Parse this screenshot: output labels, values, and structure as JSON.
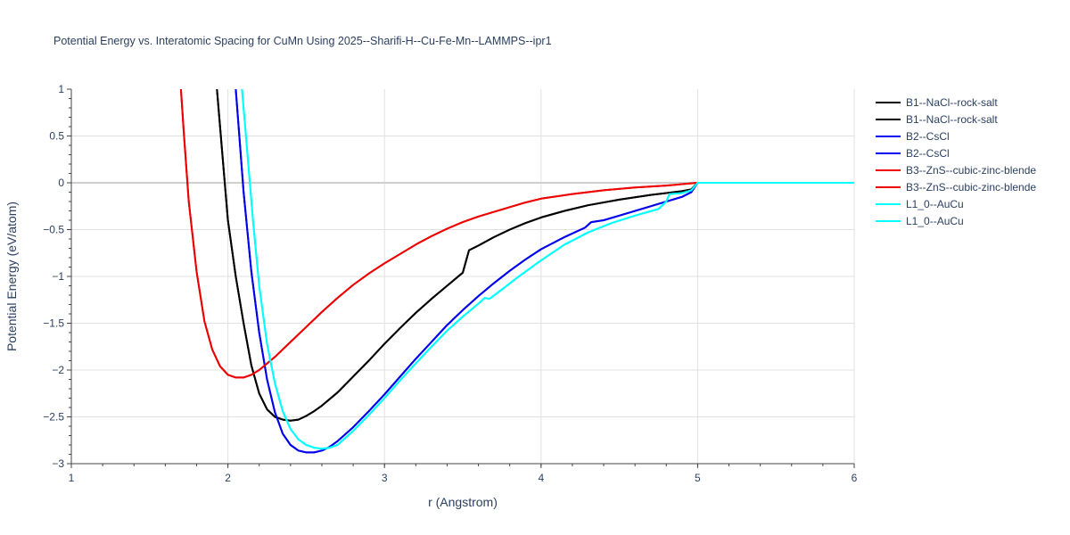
{
  "chart_data": {
    "type": "line",
    "title": "Potential Energy vs. Interatomic Spacing for CuMn Using 2025--Sharifi-H--Cu-Fe-Mn--LAMMPS--ipr1",
    "xlabel": "r (Angstrom)",
    "ylabel": "Potential Energy (eV/atom)",
    "xlim": [
      1,
      6
    ],
    "ylim": [
      -3,
      1
    ],
    "x_ticks": [
      "1",
      "2",
      "3",
      "4",
      "5",
      "6"
    ],
    "y_ticks": [
      "1",
      "0.5",
      "0",
      "−0.5",
      "−1",
      "−1.5",
      "−2",
      "−2.5",
      "−3"
    ],
    "grid": true,
    "legend_position": "right",
    "series": [
      {
        "name": "B1--NaCl--rock-salt",
        "color": "#000000",
        "x": [
          1.93,
          1.97,
          2.0,
          2.05,
          2.1,
          2.15,
          2.2,
          2.25,
          2.3,
          2.35,
          2.4,
          2.45,
          2.5,
          2.55,
          2.6,
          2.7,
          2.8,
          2.9,
          3.0,
          3.1,
          3.2,
          3.3,
          3.4,
          3.5,
          3.54,
          3.6,
          3.7,
          3.8,
          3.9,
          4.0,
          4.15,
          4.3,
          4.5,
          4.7,
          4.9,
          4.96,
          5.0,
          5.5,
          6.0
        ],
        "y": [
          1.0,
          0.2,
          -0.4,
          -1.0,
          -1.5,
          -1.95,
          -2.25,
          -2.42,
          -2.5,
          -2.53,
          -2.54,
          -2.53,
          -2.49,
          -2.44,
          -2.38,
          -2.24,
          -2.07,
          -1.9,
          -1.72,
          -1.55,
          -1.39,
          -1.24,
          -1.1,
          -0.96,
          -0.72,
          -0.67,
          -0.58,
          -0.5,
          -0.43,
          -0.37,
          -0.3,
          -0.24,
          -0.18,
          -0.13,
          -0.09,
          -0.07,
          0.0,
          0.0,
          0.0
        ]
      },
      {
        "name": "B1--NaCl--rock-salt",
        "color": "#000000",
        "x": [
          1.93,
          1.97,
          2.0,
          2.05,
          2.1,
          2.15,
          2.2,
          2.25,
          2.3,
          2.35,
          2.4,
          2.45,
          2.5,
          2.55,
          2.6,
          2.7,
          2.8,
          2.9,
          3.0,
          3.1,
          3.2,
          3.3,
          3.4,
          3.5,
          3.54,
          3.6,
          3.7,
          3.8,
          3.9,
          4.0,
          4.15,
          4.3,
          4.5,
          4.7,
          4.9,
          4.96,
          5.0,
          5.5,
          6.0
        ],
        "y": [
          1.0,
          0.2,
          -0.4,
          -1.0,
          -1.5,
          -1.95,
          -2.25,
          -2.42,
          -2.5,
          -2.53,
          -2.54,
          -2.53,
          -2.49,
          -2.44,
          -2.38,
          -2.24,
          -2.07,
          -1.9,
          -1.72,
          -1.55,
          -1.39,
          -1.24,
          -1.1,
          -0.96,
          -0.72,
          -0.67,
          -0.58,
          -0.5,
          -0.43,
          -0.37,
          -0.3,
          -0.24,
          -0.18,
          -0.13,
          -0.09,
          -0.07,
          0.0,
          0.0,
          0.0
        ]
      },
      {
        "name": "B2--CsCl",
        "color": "#0000ee",
        "x": [
          2.05,
          2.1,
          2.15,
          2.2,
          2.25,
          2.3,
          2.35,
          2.4,
          2.45,
          2.5,
          2.55,
          2.6,
          2.65,
          2.7,
          2.8,
          2.9,
          3.0,
          3.1,
          3.2,
          3.3,
          3.4,
          3.5,
          3.6,
          3.7,
          3.8,
          3.9,
          4.0,
          4.15,
          4.28,
          4.32,
          4.4,
          4.5,
          4.7,
          4.9,
          4.96,
          5.0,
          5.5,
          6.0
        ],
        "y": [
          1.0,
          -0.1,
          -0.95,
          -1.6,
          -2.1,
          -2.45,
          -2.68,
          -2.8,
          -2.86,
          -2.88,
          -2.88,
          -2.86,
          -2.82,
          -2.76,
          -2.61,
          -2.44,
          -2.26,
          -2.07,
          -1.88,
          -1.7,
          -1.52,
          -1.36,
          -1.21,
          -1.07,
          -0.94,
          -0.82,
          -0.71,
          -0.58,
          -0.48,
          -0.42,
          -0.4,
          -0.35,
          -0.25,
          -0.15,
          -0.1,
          0.0,
          0.0,
          0.0
        ]
      },
      {
        "name": "B2--CsCl",
        "color": "#0000ee",
        "x": [
          2.05,
          2.1,
          2.15,
          2.2,
          2.25,
          2.3,
          2.35,
          2.4,
          2.45,
          2.5,
          2.55,
          2.6,
          2.65,
          2.7,
          2.8,
          2.9,
          3.0,
          3.1,
          3.2,
          3.3,
          3.4,
          3.5,
          3.6,
          3.7,
          3.8,
          3.9,
          4.0,
          4.15,
          4.28,
          4.32,
          4.4,
          4.5,
          4.7,
          4.9,
          4.96,
          5.0,
          5.5,
          6.0
        ],
        "y": [
          1.0,
          -0.1,
          -0.95,
          -1.6,
          -2.1,
          -2.45,
          -2.68,
          -2.8,
          -2.86,
          -2.88,
          -2.88,
          -2.86,
          -2.82,
          -2.76,
          -2.61,
          -2.44,
          -2.26,
          -2.07,
          -1.88,
          -1.7,
          -1.52,
          -1.36,
          -1.21,
          -1.07,
          -0.94,
          -0.82,
          -0.71,
          -0.58,
          -0.48,
          -0.42,
          -0.4,
          -0.35,
          -0.25,
          -0.15,
          -0.1,
          0.0,
          0.0,
          0.0
        ]
      },
      {
        "name": "B3--ZnS--cubic-zinc-blende",
        "color": "#ee0000",
        "x": [
          1.7,
          1.72,
          1.75,
          1.8,
          1.85,
          1.9,
          1.95,
          2.0,
          2.05,
          2.1,
          2.15,
          2.2,
          2.3,
          2.4,
          2.5,
          2.6,
          2.7,
          2.8,
          2.9,
          3.0,
          3.1,
          3.2,
          3.3,
          3.4,
          3.5,
          3.6,
          3.7,
          3.8,
          3.9,
          4.0,
          4.2,
          4.4,
          4.6,
          4.8,
          5.0,
          5.5,
          6.0
        ],
        "y": [
          1.0,
          0.5,
          -0.2,
          -0.95,
          -1.48,
          -1.78,
          -1.96,
          -2.05,
          -2.08,
          -2.08,
          -2.05,
          -2.0,
          -1.86,
          -1.7,
          -1.54,
          -1.38,
          -1.23,
          -1.09,
          -0.97,
          -0.86,
          -0.76,
          -0.66,
          -0.57,
          -0.49,
          -0.42,
          -0.36,
          -0.31,
          -0.26,
          -0.21,
          -0.17,
          -0.12,
          -0.08,
          -0.05,
          -0.03,
          0.0,
          0.0,
          0.0
        ]
      },
      {
        "name": "B3--ZnS--cubic-zinc-blende",
        "color": "#ee0000",
        "x": [
          1.7,
          1.72,
          1.75,
          1.8,
          1.85,
          1.9,
          1.95,
          2.0,
          2.05,
          2.1,
          2.15,
          2.2,
          2.3,
          2.4,
          2.5,
          2.6,
          2.7,
          2.8,
          2.9,
          3.0,
          3.1,
          3.2,
          3.3,
          3.4,
          3.5,
          3.6,
          3.7,
          3.8,
          3.9,
          4.0,
          4.2,
          4.4,
          4.6,
          4.8,
          5.0,
          5.5,
          6.0
        ],
        "y": [
          1.0,
          0.5,
          -0.2,
          -0.95,
          -1.48,
          -1.78,
          -1.96,
          -2.05,
          -2.08,
          -2.08,
          -2.05,
          -2.0,
          -1.86,
          -1.7,
          -1.54,
          -1.38,
          -1.23,
          -1.09,
          -0.97,
          -0.86,
          -0.76,
          -0.66,
          -0.57,
          -0.49,
          -0.42,
          -0.36,
          -0.31,
          -0.26,
          -0.21,
          -0.17,
          -0.12,
          -0.08,
          -0.05,
          -0.03,
          0.0,
          0.0,
          0.0
        ]
      },
      {
        "name": "L1_0--AuCu",
        "color": "#00ffff",
        "x": [
          2.09,
          2.12,
          2.16,
          2.2,
          2.25,
          2.3,
          2.35,
          2.4,
          2.45,
          2.5,
          2.55,
          2.6,
          2.65,
          2.7,
          2.8,
          2.9,
          3.0,
          3.1,
          3.2,
          3.3,
          3.4,
          3.5,
          3.6,
          3.64,
          3.67,
          3.75,
          3.85,
          4.0,
          4.15,
          4.3,
          4.45,
          4.6,
          4.75,
          4.8,
          4.82,
          4.9,
          4.96,
          5.0,
          5.5,
          6.0
        ],
        "y": [
          1.0,
          0.4,
          -0.4,
          -1.1,
          -1.72,
          -2.14,
          -2.44,
          -2.63,
          -2.74,
          -2.8,
          -2.83,
          -2.84,
          -2.83,
          -2.8,
          -2.65,
          -2.48,
          -2.3,
          -2.11,
          -1.93,
          -1.75,
          -1.58,
          -1.43,
          -1.29,
          -1.23,
          -1.24,
          -1.14,
          -1.01,
          -0.83,
          -0.66,
          -0.53,
          -0.43,
          -0.35,
          -0.28,
          -0.2,
          -0.12,
          -0.11,
          -0.08,
          0.0,
          0.0,
          0.0
        ]
      },
      {
        "name": "L1_0--AuCu",
        "color": "#00ffff",
        "x": [
          2.09,
          2.12,
          2.16,
          2.2,
          2.25,
          2.3,
          2.35,
          2.4,
          2.45,
          2.5,
          2.55,
          2.6,
          2.65,
          2.7,
          2.8,
          2.9,
          3.0,
          3.1,
          3.2,
          3.3,
          3.4,
          3.5,
          3.6,
          3.64,
          3.67,
          3.75,
          3.85,
          4.0,
          4.15,
          4.3,
          4.45,
          4.6,
          4.75,
          4.8,
          4.82,
          4.9,
          4.96,
          5.0,
          5.5,
          6.0
        ],
        "y": [
          1.0,
          0.4,
          -0.4,
          -1.1,
          -1.72,
          -2.14,
          -2.44,
          -2.63,
          -2.74,
          -2.8,
          -2.83,
          -2.84,
          -2.83,
          -2.8,
          -2.65,
          -2.48,
          -2.3,
          -2.11,
          -1.93,
          -1.75,
          -1.58,
          -1.43,
          -1.29,
          -1.23,
          -1.24,
          -1.14,
          -1.01,
          -0.83,
          -0.66,
          -0.53,
          -0.43,
          -0.35,
          -0.28,
          -0.2,
          -0.12,
          -0.11,
          -0.08,
          0.0,
          0.0,
          0.0
        ]
      }
    ]
  }
}
